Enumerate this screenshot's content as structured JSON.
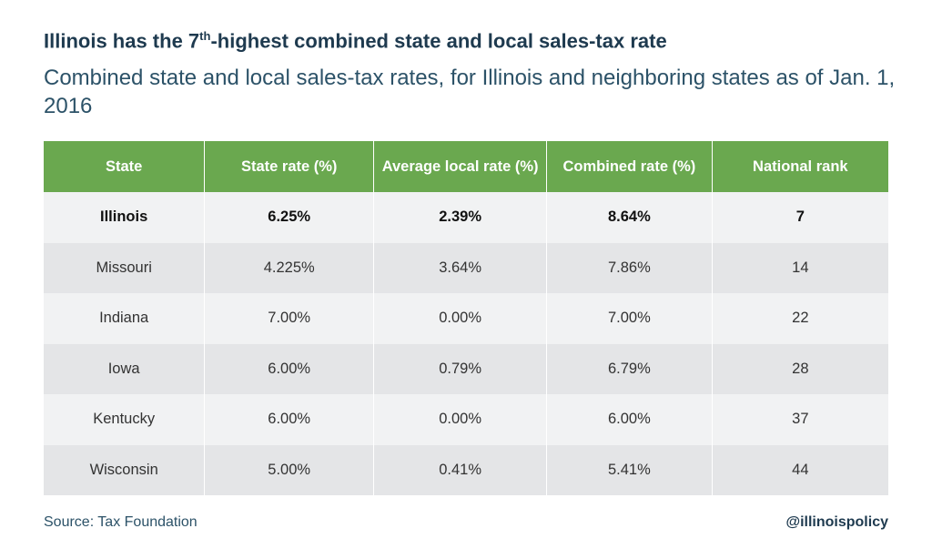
{
  "title": {
    "prefix": "Illinois has the 7",
    "superscript": "th",
    "suffix": "-highest combined state and local sales-tax rate"
  },
  "subtitle": "Combined state and local sales-tax rates, for Illinois and neighboring states as of Jan. 1, 2016",
  "chart_data": {
    "type": "table",
    "title": "Illinois has the 7th-highest combined state and local sales-tax rate",
    "subtitle": "Combined state and local sales-tax rates, for Illinois and neighboring states as of Jan. 1, 2016",
    "columns": [
      "State",
      "State rate (%)",
      "Average local rate (%)",
      "Combined rate (%)",
      "National rank"
    ],
    "rows": [
      [
        "Illinois",
        "6.25%",
        "2.39%",
        "8.64%",
        "7"
      ],
      [
        "Missouri",
        "4.225%",
        "3.64%",
        "7.86%",
        "14"
      ],
      [
        "Indiana",
        "7.00%",
        "0.00%",
        "7.00%",
        "22"
      ],
      [
        "Iowa",
        "6.00%",
        "0.79%",
        "6.79%",
        "28"
      ],
      [
        "Kentucky",
        "6.00%",
        "0.00%",
        "6.00%",
        "37"
      ],
      [
        "Wisconsin",
        "5.00%",
        "0.41%",
        "5.41%",
        "44"
      ]
    ],
    "highlighted_row": "Illinois"
  },
  "colors": {
    "header_bg": "#6aa84f",
    "row_odd": "#e4e5e7",
    "row_even": "#f1f2f3",
    "title": "#1e3a4f",
    "subtitle": "#2c5268"
  },
  "footer": {
    "source": "Source: Tax Foundation",
    "handle": "@illinoispolicy"
  }
}
